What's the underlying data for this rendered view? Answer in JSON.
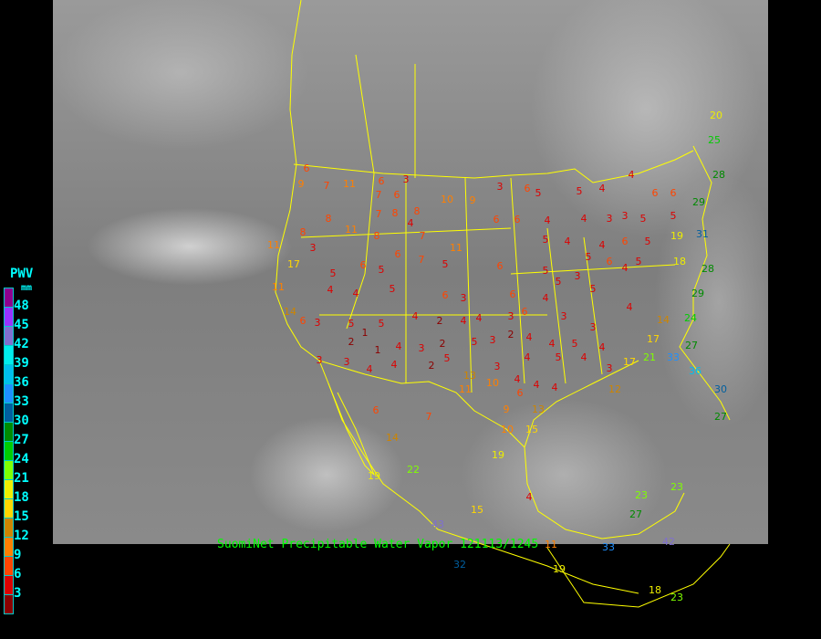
{
  "caption": "SuomiNet Precipitable Water Vapor 121113/1245",
  "legend": {
    "title": "PWV",
    "unit": "mm",
    "labels": [
      "48",
      "45",
      "42",
      "39",
      "36",
      "33",
      "30",
      "27",
      "24",
      "21",
      "18",
      "15",
      "12",
      "9",
      "6",
      "3"
    ],
    "colors": [
      "#8e008e",
      "#9933ff",
      "#7f6fd0",
      "#00eeee",
      "#00bfee",
      "#1e90ff",
      "#005f9f",
      "#008b00",
      "#00cd00",
      "#7fff00",
      "#eeee00",
      "#ffd700",
      "#cd8500",
      "#ff7f00",
      "#ff4500",
      "#dd0000",
      "#8b0000"
    ]
  },
  "stations": [
    6,
    9,
    7,
    11,
    6,
    3,
    7,
    6,
    10,
    9,
    3,
    6,
    5,
    5,
    4,
    4,
    6,
    6,
    8,
    7,
    8,
    8,
    6,
    6,
    4,
    4,
    3,
    3,
    5,
    5,
    11,
    8,
    3,
    11,
    8,
    4,
    7,
    11,
    5,
    4,
    4,
    6,
    5,
    18,
    17,
    5,
    6,
    5,
    6,
    7,
    5,
    6,
    5,
    5,
    5,
    6,
    4,
    5,
    11,
    4,
    4,
    5,
    6,
    3,
    6,
    4,
    3,
    5,
    4,
    17,
    14,
    6,
    3,
    5,
    5,
    4,
    2,
    4,
    4,
    3,
    6,
    3,
    3,
    2,
    1,
    1,
    4,
    3,
    2,
    5,
    3,
    2,
    4,
    4,
    5,
    4,
    3,
    3,
    4,
    4,
    2,
    5,
    3,
    4,
    5,
    4,
    3,
    13,
    10,
    4,
    4,
    4,
    11,
    6,
    9,
    13,
    6,
    7,
    10,
    15,
    14,
    19,
    19,
    22,
    15,
    4,
    23,
    23,
    27,
    43,
    32,
    11,
    33,
    42,
    19,
    18,
    23,
    20,
    25,
    28,
    29,
    31,
    19,
    28,
    29,
    24,
    14,
    27,
    33,
    36,
    30,
    27,
    21,
    17,
    12
  ]
}
